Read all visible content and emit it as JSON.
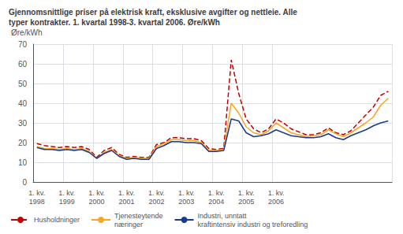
{
  "chart_data": {
    "type": "line",
    "title": "Gjennomsnittlige priser på elektrisk kraft, eksklusive avgifter og nettleie. Alle\ntyper kontrakter. 1. kvartal 1998-3. kvartal 2006. Øre/kWh",
    "ylabel": "Øre/kWh",
    "categories": [
      "1. kv.\n1998",
      null,
      null,
      null,
      "1. kv.\n1999",
      null,
      null,
      null,
      "1. kv.\n2000",
      null,
      null,
      null,
      "1. kv.\n2001",
      null,
      null,
      null,
      "1. kv.\n2002",
      null,
      null,
      null,
      "1. kv.\n2003",
      null,
      null,
      null,
      "1. kv.\n2004",
      null,
      null,
      null,
      "1. kv.\n2005",
      null,
      null,
      null,
      "1. kv.\n2006",
      null,
      null,
      null,
      null,
      null,
      null,
      null,
      null,
      null,
      null,
      null,
      null,
      null,
      null,
      null
    ],
    "series": [
      {
        "name": "Husholdninger",
        "color": "#c00000",
        "line_style": "dashed",
        "values": [
          19.5,
          18.5,
          18.0,
          17.5,
          18.0,
          17.5,
          18.0,
          16.5,
          12.5,
          16.0,
          17.5,
          14.0,
          12.5,
          13.0,
          12.5,
          12.5,
          19.0,
          20.0,
          22.5,
          22.5,
          22.0,
          22.0,
          21.0,
          17.0,
          16.5,
          17.0,
          62.0,
          45.0,
          32.0,
          27.0,
          25.0,
          27.0,
          32.0,
          30.0,
          27.0,
          25.5,
          24.0,
          24.0,
          25.0,
          27.5,
          25.0,
          24.0,
          26.0,
          30.0,
          34.0,
          38.0,
          44.0,
          46.0
        ]
      },
      {
        "name": "Tjenesteytende\nnæringer",
        "color": "#f5a623",
        "line_style": "solid",
        "values": [
          18.0,
          17.0,
          17.0,
          16.5,
          17.0,
          16.5,
          17.0,
          15.5,
          12.0,
          15.0,
          16.5,
          13.5,
          12.0,
          12.5,
          12.0,
          12.0,
          18.0,
          19.5,
          21.5,
          21.5,
          21.0,
          21.0,
          20.0,
          16.0,
          16.0,
          16.5,
          40.0,
          35.0,
          28.0,
          25.0,
          24.0,
          26.0,
          30.0,
          27.5,
          25.0,
          24.0,
          23.0,
          23.5,
          24.0,
          26.5,
          24.5,
          23.0,
          25.0,
          27.5,
          30.0,
          33.0,
          39.0,
          42.5
        ]
      },
      {
        "name": "Industri, unntatt\nkraftintensiv industri og treforedling",
        "color": "#1a3a8f",
        "line_style": "solid",
        "values": [
          17.5,
          16.5,
          16.5,
          16.0,
          16.5,
          16.0,
          16.5,
          15.0,
          12.0,
          14.5,
          16.0,
          13.0,
          11.5,
          12.0,
          11.5,
          11.5,
          17.0,
          18.5,
          20.5,
          20.5,
          20.0,
          20.0,
          19.5,
          15.5,
          15.5,
          16.0,
          32.0,
          31.0,
          25.0,
          23.0,
          23.5,
          24.5,
          26.5,
          25.0,
          23.5,
          23.0,
          22.5,
          22.5,
          23.0,
          24.5,
          22.5,
          21.5,
          23.5,
          25.0,
          26.5,
          28.5,
          30.0,
          31.0
        ]
      }
    ],
    "ylim": [
      0,
      70
    ],
    "yticks": [
      0,
      10,
      20,
      30,
      40,
      50,
      60,
      70
    ],
    "grid": true,
    "legend": "bottom"
  }
}
